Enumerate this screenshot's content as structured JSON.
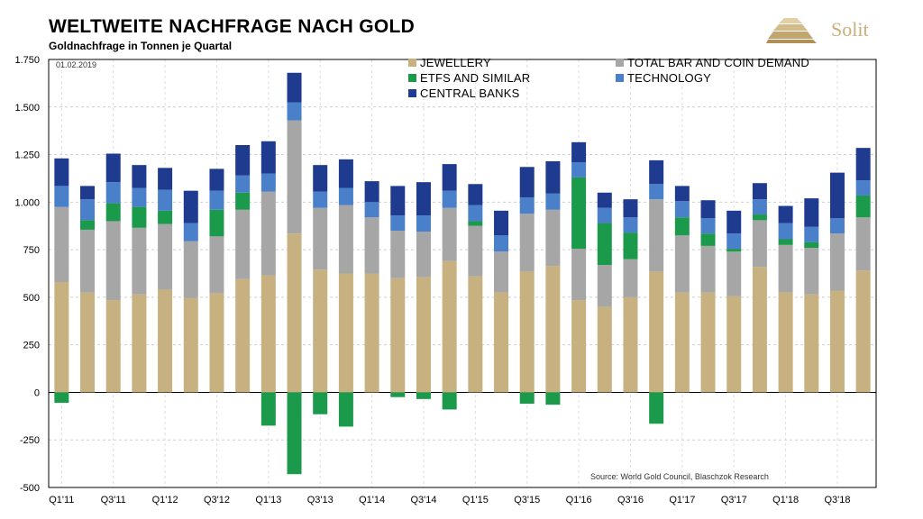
{
  "header": {
    "title": "WELTWEITE NACHFRAGE NACH GOLD",
    "subtitle": "Goldnachfrage in Tonnen je Quartal",
    "logo_text": "Solit"
  },
  "chart_data": {
    "type": "bar",
    "stacked": true,
    "date_note": "01.02.2019",
    "source": "Source: World Gold Council, Blaschzok Research",
    "categories": [
      "Q1'11",
      "Q2'11",
      "Q3'11",
      "Q4'11",
      "Q1'12",
      "Q2'12",
      "Q3'12",
      "Q4'12",
      "Q1'13",
      "Q2'13",
      "Q3'13",
      "Q4'13",
      "Q1'14",
      "Q2'14",
      "Q3'14",
      "Q4'14",
      "Q1'15",
      "Q2'15",
      "Q3'15",
      "Q4'15",
      "Q1'16",
      "Q2'16",
      "Q3'16",
      "Q4'16",
      "Q1'17",
      "Q2'17",
      "Q3'17",
      "Q4'17",
      "Q1'18",
      "Q2'18",
      "Q3'18",
      "Q4'18"
    ],
    "x_tick_labels": [
      "Q1'11",
      "Q3'11",
      "Q1'12",
      "Q3'12",
      "Q1'13",
      "Q3'13",
      "Q1'14",
      "Q3'14",
      "Q1'15",
      "Q3'15",
      "Q1'16",
      "Q3'16",
      "Q1'17",
      "Q3'17",
      "Q1'18",
      "Q3'18"
    ],
    "series": [
      {
        "name": "JEWELLERY",
        "color": "#c8b180",
        "values": [
          580,
          525,
          485,
          515,
          540,
          495,
          520,
          595,
          615,
          835,
          645,
          625,
          625,
          600,
          605,
          690,
          610,
          525,
          635,
          665,
          485,
          450,
          500,
          635,
          525,
          525,
          505,
          660,
          525,
          515,
          535,
          640
        ]
      },
      {
        "name": "TOTAL BAR AND COIN DEMAND",
        "color": "#a6a6a6",
        "values": [
          395,
          330,
          415,
          350,
          345,
          300,
          300,
          365,
          440,
          595,
          325,
          360,
          295,
          250,
          240,
          280,
          265,
          215,
          305,
          295,
          270,
          220,
          200,
          380,
          300,
          245,
          235,
          245,
          250,
          245,
          300,
          280
        ]
      },
      {
        "name": "ETFS AND SIMILAR",
        "color": "#1b9a4b",
        "values": [
          -55,
          50,
          95,
          110,
          70,
          0,
          140,
          90,
          -175,
          -430,
          -115,
          -180,
          0,
          -25,
          -35,
          -90,
          25,
          0,
          -60,
          -65,
          375,
          220,
          140,
          -165,
          95,
          65,
          15,
          30,
          30,
          30,
          0,
          115
        ]
      },
      {
        "name": "TECHNOLOGY",
        "color": "#4a7fca",
        "values": [
          110,
          110,
          110,
          100,
          110,
          95,
          100,
          90,
          95,
          95,
          85,
          90,
          80,
          80,
          85,
          90,
          85,
          85,
          85,
          85,
          80,
          80,
          80,
          80,
          85,
          80,
          80,
          80,
          85,
          80,
          80,
          80
        ]
      },
      {
        "name": "CENTRAL BANKS",
        "color": "#1f3b8f",
        "values": [
          145,
          70,
          150,
          120,
          115,
          170,
          115,
          160,
          170,
          155,
          140,
          150,
          110,
          155,
          175,
          140,
          110,
          130,
          160,
          170,
          105,
          80,
          95,
          125,
          80,
          95,
          120,
          85,
          90,
          150,
          240,
          170
        ]
      }
    ],
    "ylim": [
      -500,
      1750
    ],
    "y_ticks": [
      -500,
      -250,
      0,
      250,
      500,
      750,
      "1.000",
      "1.250",
      "1.500",
      "1.750"
    ],
    "grid": true,
    "legend_position": "top"
  }
}
